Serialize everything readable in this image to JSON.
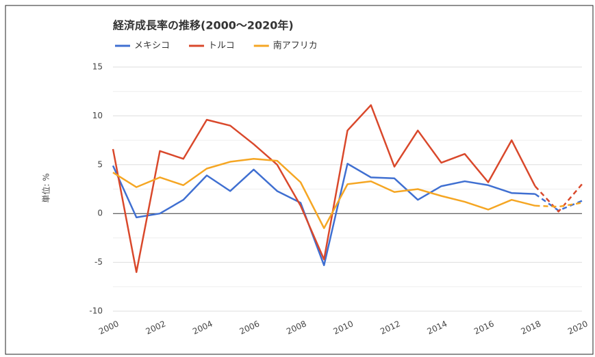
{
  "chart_data": {
    "type": "line",
    "title": "経済成長率の推移(2000～2020年)",
    "y_label": "単位: %",
    "x": [
      2000,
      2001,
      2002,
      2003,
      2004,
      2005,
      2006,
      2007,
      2008,
      2009,
      2010,
      2011,
      2012,
      2013,
      2014,
      2015,
      2016,
      2017,
      2018,
      2019,
      2020
    ],
    "xlim": [
      2000,
      2020
    ],
    "xticks": [
      2000,
      2002,
      2004,
      2006,
      2008,
      2010,
      2012,
      2014,
      2016,
      2018,
      2020
    ],
    "ylim": [
      -10,
      15
    ],
    "yticks": [
      -10,
      -5,
      0,
      5,
      10,
      15
    ],
    "yminor": [
      -7.5,
      -2.5,
      2.5,
      7.5,
      12.5
    ],
    "grid": true,
    "dashed_from": 2018,
    "legend": "top",
    "series": [
      {
        "name": "メキシコ",
        "color": "#3f6fd1",
        "values": [
          4.9,
          -0.4,
          0.0,
          1.4,
          3.9,
          2.3,
          4.5,
          2.3,
          1.1,
          -5.3,
          5.1,
          3.7,
          3.6,
          1.4,
          2.8,
          3.3,
          2.9,
          2.1,
          2.0,
          0.3,
          1.3
        ]
      },
      {
        "name": "トルコ",
        "color": "#d9482b",
        "values": [
          6.6,
          -6.0,
          6.4,
          5.6,
          9.6,
          9.0,
          7.1,
          5.0,
          0.8,
          -4.7,
          8.5,
          11.1,
          4.8,
          8.5,
          5.2,
          6.1,
          3.2,
          7.5,
          2.8,
          0.2,
          3.0
        ]
      },
      {
        "name": "南アフリカ",
        "color": "#f5a623",
        "values": [
          4.2,
          2.7,
          3.7,
          2.9,
          4.6,
          5.3,
          5.6,
          5.4,
          3.2,
          -1.5,
          3.0,
          3.3,
          2.2,
          2.5,
          1.8,
          1.2,
          0.4,
          1.4,
          0.8,
          0.7,
          1.1
        ]
      }
    ]
  }
}
